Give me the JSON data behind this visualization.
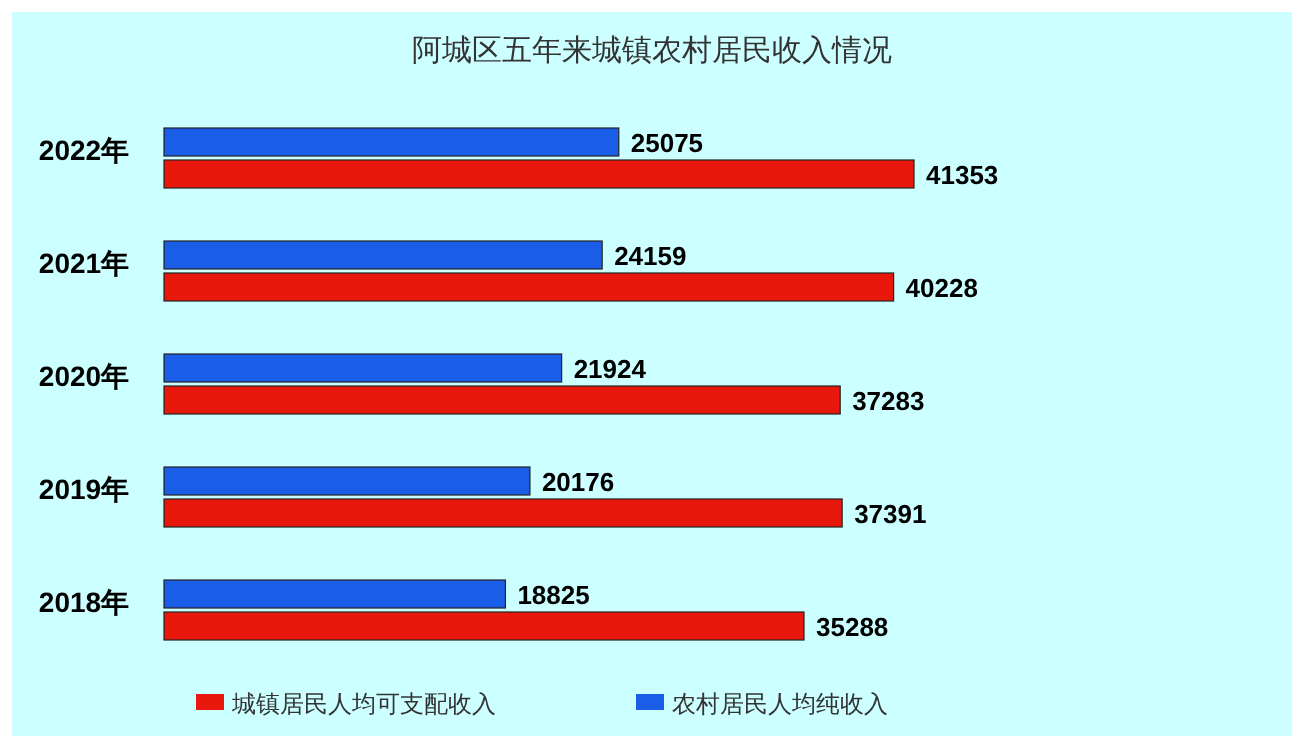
{
  "chart_data": {
    "type": "bar",
    "orientation": "horizontal",
    "title": "阿城区五年来城镇农村居民收入情况",
    "categories": [
      "2022年",
      "2021年",
      "2020年",
      "2019年",
      "2018年"
    ],
    "series": [
      {
        "name": "农村居民人均纯收入",
        "color": "#1a5ee8",
        "values": [
          25075,
          24159,
          21924,
          20176,
          18825
        ]
      },
      {
        "name": "城镇居民人均可支配收入",
        "color": "#e8180c",
        "values": [
          41353,
          40228,
          37283,
          37391,
          35288
        ]
      }
    ],
    "data_labels": true,
    "legend": "bottom"
  }
}
